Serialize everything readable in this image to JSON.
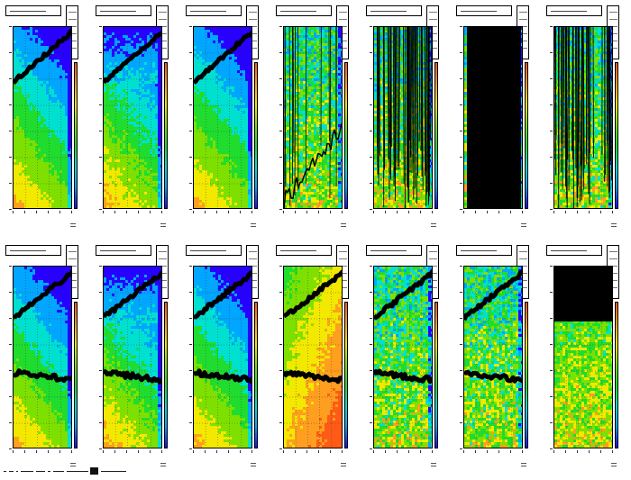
{
  "figure": {
    "rows": 2,
    "cols": 7,
    "footer_text": ""
  },
  "chart_data": [
    {
      "type": "heatmap",
      "panel": 1,
      "row": 1,
      "col": 1,
      "background": "smooth",
      "overlay": "single-curve",
      "title": "",
      "colormap": [
        "#2800ff",
        "#00a6ff",
        "#00e0d0",
        "#1fdc2e",
        "#7ee000",
        "#f2e800",
        "#ff9e1f",
        "#ff5a16"
      ]
    },
    {
      "type": "heatmap",
      "panel": 2,
      "row": 1,
      "col": 2,
      "background": "smooth-blue-top",
      "overlay": "single-curve",
      "title": "",
      "colormap": [
        "#2800ff",
        "#00a6ff",
        "#00e0d0",
        "#1fdc2e",
        "#7ee000",
        "#f2e800",
        "#ff9e1f",
        "#ff5a16"
      ]
    },
    {
      "type": "heatmap",
      "panel": 3,
      "row": 1,
      "col": 3,
      "background": "smooth",
      "overlay": "single-curve",
      "title": "",
      "colormap": [
        "#2800ff",
        "#00a6ff",
        "#00e0d0",
        "#1fdc2e",
        "#7ee000",
        "#f2e800",
        "#ff9e1f",
        "#ff5a16"
      ]
    },
    {
      "type": "heatmap",
      "panel": 4,
      "row": 1,
      "col": 4,
      "background": "noisy",
      "overlay": "scattered",
      "title": "",
      "colormap": [
        "#2800ff",
        "#00a6ff",
        "#00e0d0",
        "#1fdc2e",
        "#7ee000",
        "#f2e800",
        "#ff9e1f",
        "#ff5a16"
      ]
    },
    {
      "type": "heatmap",
      "panel": 5,
      "row": 1,
      "col": 5,
      "background": "noisy",
      "overlay": "dense-vertical",
      "title": "",
      "colormap": [
        "#2800ff",
        "#00a6ff",
        "#00e0d0",
        "#1fdc2e",
        "#7ee000",
        "#f2e800",
        "#ff9e1f",
        "#ff5a16"
      ]
    },
    {
      "type": "heatmap",
      "panel": 6,
      "row": 1,
      "col": 6,
      "background": "noisy",
      "overlay": "solid",
      "title": "",
      "colormap": [
        "#2800ff",
        "#00a6ff",
        "#00e0d0",
        "#1fdc2e",
        "#7ee000",
        "#f2e800",
        "#ff9e1f",
        "#ff5a16"
      ]
    },
    {
      "type": "heatmap",
      "panel": 7,
      "row": 1,
      "col": 7,
      "background": "noisy",
      "overlay": "dense-vertical",
      "title": "",
      "colormap": [
        "#2800ff",
        "#00a6ff",
        "#00e0d0",
        "#1fdc2e",
        "#7ee000",
        "#f2e800",
        "#ff9e1f",
        "#ff5a16"
      ]
    },
    {
      "type": "heatmap",
      "panel": 8,
      "row": 2,
      "col": 1,
      "background": "smooth",
      "overlay": "two-curves",
      "title": "",
      "colormap": [
        "#2800ff",
        "#00a6ff",
        "#00e0d0",
        "#1fdc2e",
        "#7ee000",
        "#f2e800",
        "#ff9e1f",
        "#ff5a16"
      ]
    },
    {
      "type": "heatmap",
      "panel": 9,
      "row": 2,
      "col": 2,
      "background": "smooth-blue-top",
      "overlay": "two-curves",
      "title": "",
      "colormap": [
        "#2800ff",
        "#00a6ff",
        "#00e0d0",
        "#1fdc2e",
        "#7ee000",
        "#f2e800",
        "#ff9e1f",
        "#ff5a16"
      ]
    },
    {
      "type": "heatmap",
      "panel": 10,
      "row": 2,
      "col": 3,
      "background": "smooth",
      "overlay": "two-curves",
      "title": "",
      "colormap": [
        "#2800ff",
        "#00a6ff",
        "#00e0d0",
        "#1fdc2e",
        "#7ee000",
        "#f2e800",
        "#ff9e1f",
        "#ff5a16"
      ]
    },
    {
      "type": "heatmap",
      "panel": 11,
      "row": 2,
      "col": 4,
      "background": "warm",
      "overlay": "two-curves",
      "title": "",
      "colormap": [
        "#2800ff",
        "#00a6ff",
        "#00e0d0",
        "#1fdc2e",
        "#7ee000",
        "#f2e800",
        "#ff9e1f",
        "#ff5a16"
      ]
    },
    {
      "type": "heatmap",
      "panel": 12,
      "row": 2,
      "col": 5,
      "background": "noisy",
      "overlay": "two-curves",
      "title": "",
      "colormap": [
        "#2800ff",
        "#00a6ff",
        "#00e0d0",
        "#1fdc2e",
        "#7ee000",
        "#f2e800",
        "#ff9e1f",
        "#ff5a16"
      ]
    },
    {
      "type": "heatmap",
      "panel": 13,
      "row": 2,
      "col": 6,
      "background": "noisy",
      "overlay": "two-curves",
      "title": "",
      "colormap": [
        "#2800ff",
        "#00a6ff",
        "#00e0d0",
        "#1fdc2e",
        "#7ee000",
        "#f2e800",
        "#ff9e1f",
        "#ff5a16"
      ]
    },
    {
      "type": "heatmap",
      "panel": 14,
      "row": 2,
      "col": 7,
      "background": "noisy-warm",
      "overlay": "band",
      "title": "",
      "colormap": [
        "#2800ff",
        "#00a6ff",
        "#00e0d0",
        "#1fdc2e",
        "#7ee000",
        "#f2e800",
        "#ff9e1f",
        "#ff5a16"
      ]
    }
  ]
}
